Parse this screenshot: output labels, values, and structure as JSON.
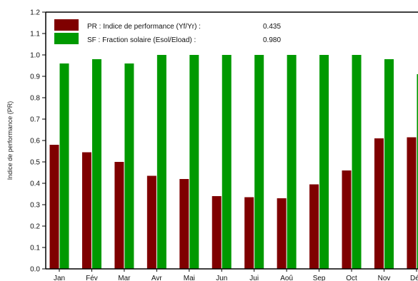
{
  "chart_data": {
    "type": "bar",
    "categories": [
      "Jan",
      "Fév",
      "Mar",
      "Avr",
      "Mai",
      "Jun",
      "Jui",
      "Aoû",
      "Sep",
      "Oct",
      "Nov",
      "Déc"
    ],
    "series": [
      {
        "name": "PR : Indice de performance (Yf/Yr) :",
        "summary_value": "0.435",
        "color": "#7f0000",
        "values": [
          0.58,
          0.545,
          0.5,
          0.435,
          0.42,
          0.34,
          0.335,
          0.33,
          0.395,
          0.46,
          0.61,
          0.615
        ]
      },
      {
        "name": "SF : Fraction solaire (Esol/Eload) :",
        "summary_value": "0.980",
        "color": "#009900",
        "values": [
          0.96,
          0.98,
          0.96,
          1.0,
          1.0,
          1.0,
          1.0,
          1.0,
          1.0,
          1.0,
          0.98,
          0.91
        ]
      }
    ],
    "ylabel": "Indice de performance (PR)",
    "ylim": [
      0.0,
      1.2
    ],
    "yticks": [
      "0.0",
      "0.1",
      "0.2",
      "0.3",
      "0.4",
      "0.5",
      "0.6",
      "0.7",
      "0.8",
      "0.9",
      "1.0",
      "1.1",
      "1.2"
    ],
    "grid": false,
    "legend_position": "top-left"
  }
}
